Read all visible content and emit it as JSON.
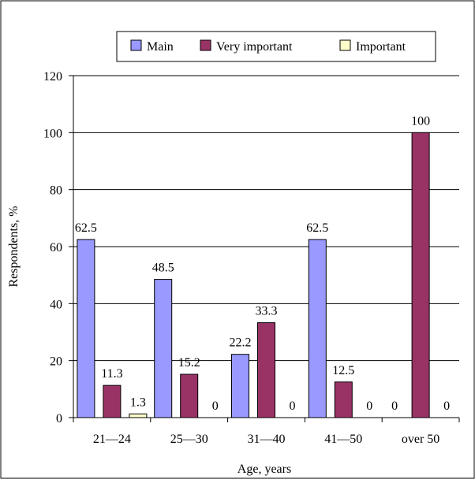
{
  "chart_data": {
    "type": "bar",
    "categories": [
      "21—24",
      "25—30",
      "31—40",
      "41—50",
      "over 50"
    ],
    "series": [
      {
        "name": "Main",
        "values": [
          62.5,
          48.5,
          22.2,
          62.5,
          0
        ],
        "labels": [
          "62.5",
          "48.5",
          "22.2",
          "62.5",
          "0"
        ],
        "color": "#9999ff"
      },
      {
        "name": "Very important",
        "values": [
          11.3,
          15.2,
          33.3,
          12.5,
          100
        ],
        "labels": [
          "11.3",
          "15.2",
          "33.3",
          "12.5",
          "100"
        ],
        "color": "#993366"
      },
      {
        "name": "Important",
        "values": [
          1.3,
          0,
          0,
          0,
          0
        ],
        "labels": [
          "1.3",
          "0",
          "0",
          "0",
          "0"
        ],
        "color": "#ffffcc"
      }
    ],
    "xlabel": "Age, years",
    "ylabel": "Respondents, %",
    "ylim": [
      0,
      120
    ],
    "yticks": [
      0,
      20,
      40,
      60,
      80,
      100,
      120
    ],
    "grid": true,
    "legend": "top"
  }
}
